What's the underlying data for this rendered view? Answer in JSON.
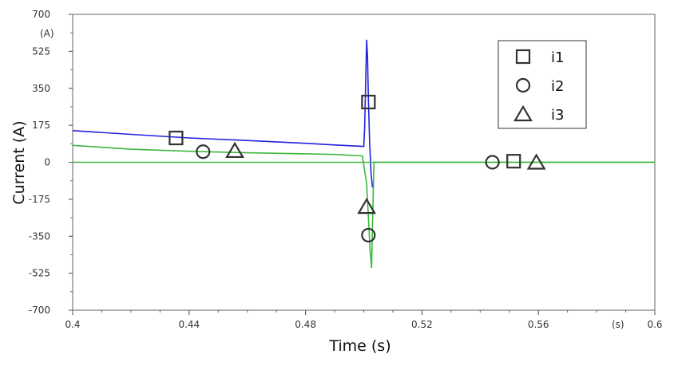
{
  "chart_data": {
    "type": "line",
    "xlabel": "Time (s)",
    "ylabel": "Current (A)",
    "x_unit_label": "(s)",
    "y_unit_label": "(A)",
    "xlim": [
      0.4,
      0.6
    ],
    "ylim": [
      -700,
      700
    ],
    "x_ticks": [
      0.4,
      0.44,
      0.48,
      0.52,
      0.56,
      0.6
    ],
    "x_tick_labels": [
      "0.4",
      "0.44",
      "0.48",
      "0.52",
      "0.56",
      "0.6"
    ],
    "y_ticks": [
      700,
      525,
      350,
      175,
      0,
      -175,
      -350,
      -525,
      -700
    ],
    "y_tick_labels": [
      "700",
      "525",
      "350",
      "175",
      "0",
      "-175",
      "-350",
      "-525",
      "-700"
    ],
    "grid": false,
    "legend_position": "top-right",
    "series": [
      {
        "name": "i1",
        "color": "#2222dd",
        "marker": "square",
        "x": [
          0.4,
          0.42,
          0.44,
          0.46,
          0.48,
          0.49,
          0.5,
          0.5003,
          0.501,
          0.5013,
          0.5016,
          0.502,
          0.5025,
          0.503
        ],
        "y": [
          150,
          132,
          115,
          103,
          90,
          82,
          75,
          160,
          580,
          500,
          300,
          100,
          -50,
          -120
        ],
        "marker_points": [
          [
            0.4355,
            115
          ],
          [
            0.5016,
            285
          ],
          [
            0.5515,
            5
          ]
        ]
      },
      {
        "name": "i2",
        "color": "#3cb83c",
        "marker": "circle",
        "x": [
          0.4,
          0.42,
          0.44,
          0.46,
          0.48,
          0.49,
          0.4995,
          0.501,
          0.5022,
          0.5027,
          0.503,
          0.5035,
          0.6
        ],
        "y": [
          80,
          62,
          52,
          45,
          40,
          37,
          30,
          -100,
          -420,
          -500,
          -300,
          0,
          0
        ],
        "marker_points": [
          [
            0.4448,
            50
          ],
          [
            0.5016,
            -345
          ],
          [
            0.5442,
            0
          ]
        ]
      },
      {
        "name": "i3",
        "color": "#3cb83c",
        "marker": "triangle",
        "x": [
          0.4,
          0.6
        ],
        "y": [
          0,
          0
        ],
        "marker_points": [
          [
            0.4557,
            55
          ],
          [
            0.501,
            -210
          ],
          [
            0.5593,
            0
          ]
        ]
      }
    ]
  }
}
